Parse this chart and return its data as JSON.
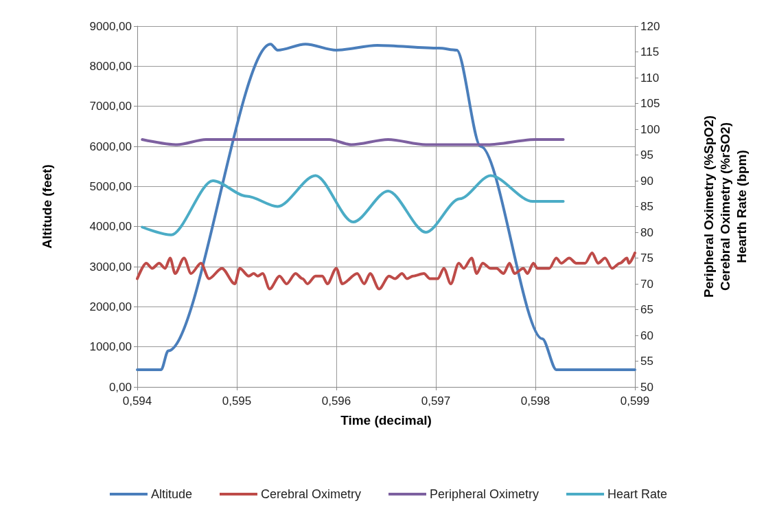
{
  "chart_data": {
    "type": "line",
    "xlabel": "Time (decimal)",
    "ylabel": "Altitude (feet)",
    "y2label": "Peripheral Oximetry (%SpO2)\nCerebral Oximetry (%rSO2)\nHearth Rate (bpm)",
    "xlim": [
      0.594,
      0.599
    ],
    "xticks": [
      {
        "value": 0.594,
        "label": "0,594"
      },
      {
        "value": 0.595,
        "label": "0,595"
      },
      {
        "value": 0.596,
        "label": "0,596"
      },
      {
        "value": 0.597,
        "label": "0,597"
      },
      {
        "value": 0.598,
        "label": "0,598"
      },
      {
        "value": 0.599,
        "label": "0,599"
      }
    ],
    "ylim": [
      0,
      9000
    ],
    "yticks": [
      {
        "value": 0,
        "label": "0,00"
      },
      {
        "value": 1000,
        "label": "1000,00"
      },
      {
        "value": 2000,
        "label": "2000,00"
      },
      {
        "value": 3000,
        "label": "3000,00"
      },
      {
        "value": 4000,
        "label": "4000,00"
      },
      {
        "value": 5000,
        "label": "5000,00"
      },
      {
        "value": 6000,
        "label": "6000,00"
      },
      {
        "value": 7000,
        "label": "7000,00"
      },
      {
        "value": 8000,
        "label": "8000,00"
      },
      {
        "value": 9000,
        "label": "9000,00"
      }
    ],
    "y2lim": [
      50,
      120
    ],
    "y2ticks": [
      50,
      55,
      60,
      65,
      70,
      75,
      80,
      85,
      90,
      95,
      100,
      105,
      110,
      115,
      120
    ],
    "grid": true,
    "legend": "bottom",
    "marker": "none",
    "line_style": "solid",
    "series": [
      {
        "name": "Altitude",
        "color": "#4a7ebb",
        "x": [
          0.594,
          0.59424,
          0.59431,
          0.59534,
          0.59541,
          0.59569,
          0.596,
          0.59641,
          0.59703,
          0.59721,
          0.59745,
          0.59807,
          0.59821,
          0.599
        ],
        "values": [
          430,
          430,
          900,
          8550,
          8400,
          8550,
          8400,
          8520,
          8450,
          8400,
          6000,
          1200,
          430,
          430
        ]
      },
      {
        "name": "Cerebral Oximetry",
        "color": "#be4b48",
        "axis": "y2",
        "x": [
          0.594,
          0.59409,
          0.59415,
          0.59422,
          0.59428,
          0.59433,
          0.59438,
          0.59447,
          0.59454,
          0.59464,
          0.59472,
          0.59485,
          0.59498,
          0.59503,
          0.59512,
          0.59517,
          0.59521,
          0.59526,
          0.59533,
          0.59543,
          0.5955,
          0.59559,
          0.59566,
          0.59571,
          0.59579,
          0.59586,
          0.59591,
          0.596,
          0.59606,
          0.59621,
          0.59628,
          0.59634,
          0.59643,
          0.59653,
          0.59659,
          0.59666,
          0.59671,
          0.59677,
          0.59688,
          0.59694,
          0.59702,
          0.59708,
          0.59715,
          0.59723,
          0.59728,
          0.59736,
          0.59741,
          0.59747,
          0.59755,
          0.59761,
          0.59768,
          0.59774,
          0.59779,
          0.59788,
          0.59792,
          0.59798,
          0.59802,
          0.59814,
          0.59821,
          0.59826,
          0.59834,
          0.59841,
          0.5985,
          0.59857,
          0.59863,
          0.5987,
          0.59877,
          0.59885,
          0.59892,
          0.59894,
          0.599
        ],
        "values": [
          71,
          74,
          73,
          74,
          73,
          75,
          72,
          75,
          72,
          74,
          71,
          73,
          70,
          73,
          71.5,
          72,
          71.5,
          72,
          69,
          71.5,
          70,
          72,
          71,
          70,
          71.5,
          71.5,
          70,
          73,
          70,
          72,
          70,
          72,
          69,
          71.5,
          71,
          72,
          71,
          71.5,
          72,
          71,
          71,
          73,
          70,
          74,
          73,
          75,
          72,
          74,
          73,
          73,
          72,
          74,
          72,
          73,
          72,
          74,
          73,
          73,
          75,
          74,
          75,
          74,
          74,
          76,
          74,
          75,
          73,
          74,
          75,
          74,
          76
        ]
      },
      {
        "name": "Peripheral Oximetry",
        "color": "#7d60a0",
        "axis": "y2",
        "x": [
          0.59405,
          0.5944,
          0.59469,
          0.59593,
          0.59615,
          0.59652,
          0.5969,
          0.59752,
          0.598,
          0.59828
        ],
        "values": [
          98,
          97,
          98,
          98,
          97,
          98,
          97,
          97,
          98,
          98
        ]
      },
      {
        "name": "Heart Rate",
        "color": "#4bacc6",
        "axis": "y2",
        "x": [
          0.59405,
          0.59434,
          0.59476,
          0.5951,
          0.59541,
          0.59579,
          0.59617,
          0.59652,
          0.5969,
          0.59724,
          0.59755,
          0.59797,
          0.59828
        ],
        "values": [
          81,
          79.5,
          90,
          87,
          85,
          91,
          82,
          88,
          80,
          86.5,
          91,
          86,
          86
        ]
      }
    ]
  }
}
